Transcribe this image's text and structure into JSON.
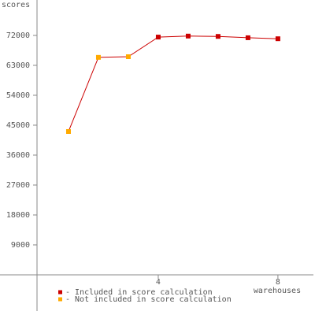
{
  "chart_data": {
    "type": "line",
    "y_label": "scores",
    "x_label": "warehouses",
    "x": [
      1,
      2,
      3,
      4,
      5,
      6,
      7,
      8
    ],
    "series": [
      {
        "name": "- Included in score calculation",
        "color": "#cc0000",
        "values": [
          null,
          null,
          null,
          71500,
          71800,
          71700,
          71300,
          71000
        ]
      },
      {
        "name": "- Not included in score calculation",
        "color": "#ffaa00",
        "values": [
          43100,
          65400,
          65600,
          null,
          null,
          null,
          null,
          null
        ]
      }
    ],
    "line_color": "#cc0000",
    "xlim": [
      0,
      9.24
    ],
    "ylim": [
      -10900,
      82650
    ],
    "xticks": [
      4,
      8
    ],
    "yticks": [
      9000,
      18000,
      27000,
      36000,
      45000,
      54000,
      63000,
      72000
    ]
  }
}
